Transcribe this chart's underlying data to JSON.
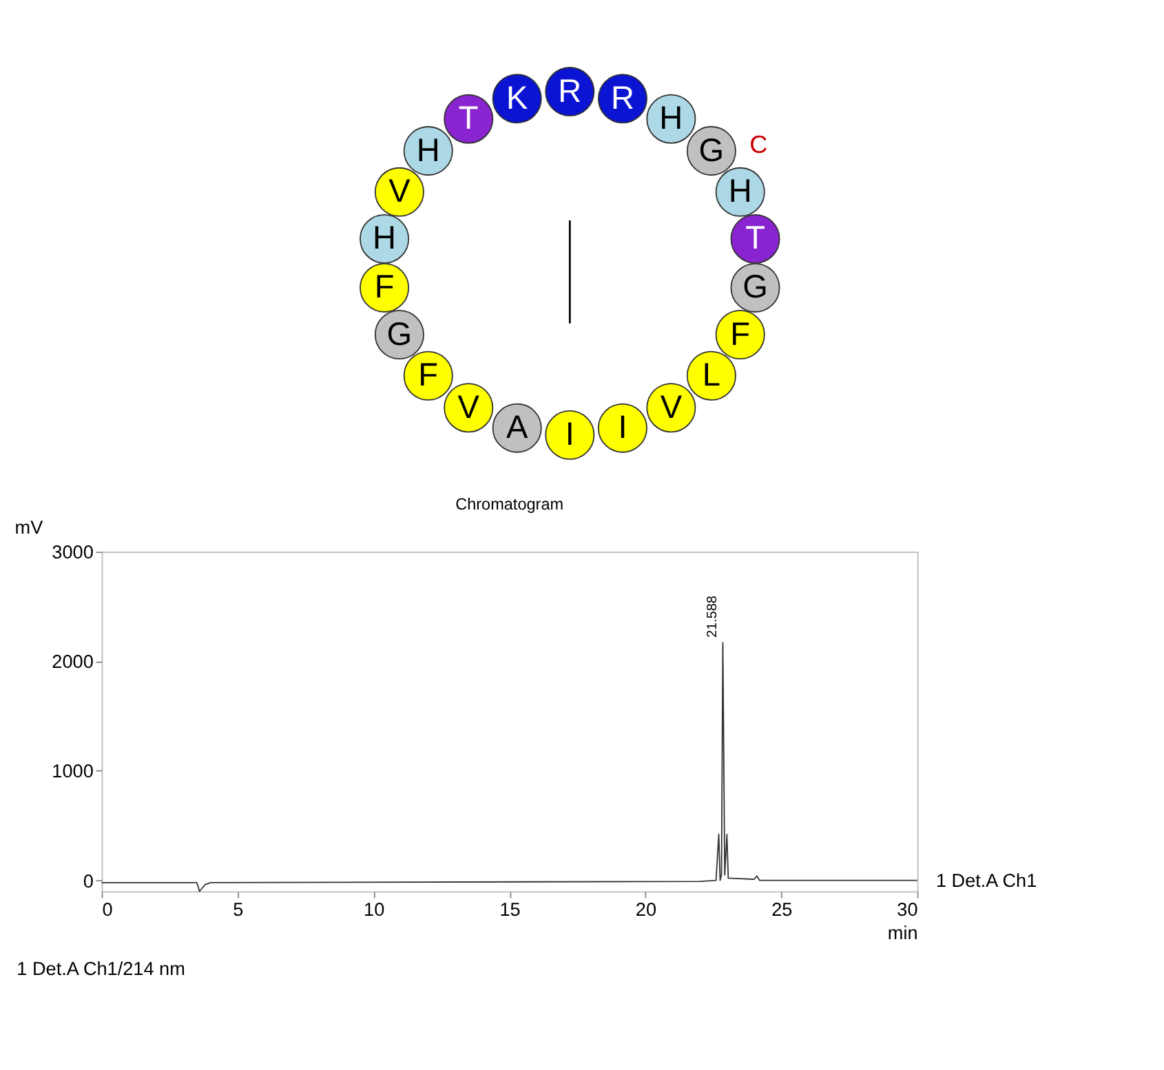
{
  "chart_data": [
    {
      "type": "other",
      "categories": [
        "R",
        "R",
        "H",
        "G",
        "H",
        "T",
        "G",
        "F",
        "L",
        "V",
        "I",
        "I",
        "A",
        "V",
        "F",
        "G",
        "F",
        "H",
        "V",
        "H",
        "T",
        "K"
      ],
      "colors": [
        "#0a14d2",
        "#0a14d2",
        "#add8e6",
        "#c0c0c0",
        "#add8e6",
        "#8a24d0",
        "#c0c0c0",
        "#ffff00",
        "#ffff00",
        "#ffff00",
        "#ffff00",
        "#ffff00",
        "#c0c0c0",
        "#ffff00",
        "#ffff00",
        "#c0c0c0",
        "#ffff00",
        "#add8e6",
        "#ffff00",
        "#add8e6",
        "#8a24d0",
        "#0a14d2"
      ],
      "annotations": [
        "C"
      ]
    },
    {
      "type": "line",
      "title": "Chromatogram",
      "xlabel": "min",
      "ylabel": "mV",
      "x": [
        0,
        3.5,
        3.6,
        3.8,
        4,
        22,
        22.6,
        22.7,
        22.75,
        22.8,
        22.85,
        22.92,
        23.0,
        23.05,
        24,
        24.1,
        24.2,
        30
      ],
      "series": [
        {
          "color": "#333333",
          "values": [
            -20,
            -20,
            -100,
            -40,
            -20,
            -10,
            0,
            420,
            0,
            50,
            2170,
            50,
            420,
            20,
            10,
            40,
            0,
            0
          ]
        }
      ],
      "xlim": [
        0,
        30
      ],
      "xticks": [
        0,
        5,
        10,
        15,
        20,
        25,
        30
      ],
      "ylim": [
        -100,
        3000
      ],
      "yticks": [
        0,
        1000,
        2000,
        3000
      ],
      "grid": false,
      "annotations": [
        {
          "text": "21.588",
          "x": 22.85,
          "y": 2170
        },
        "1 Det.A Ch1",
        "1 Det.A Ch1/214 nm"
      ]
    }
  ]
}
